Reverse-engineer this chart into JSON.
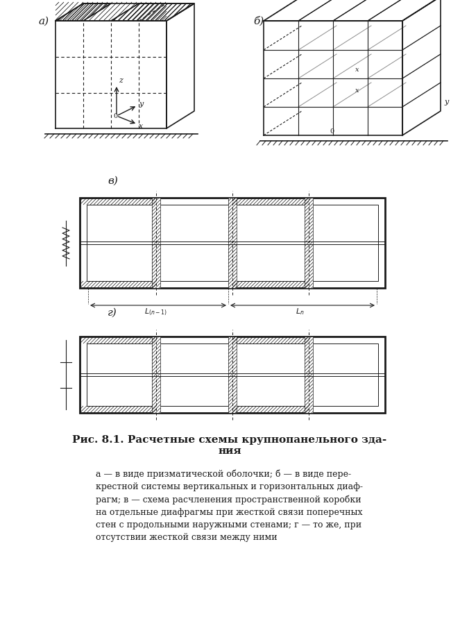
{
  "bg_color": "#f5f5f0",
  "line_color": "#1a1a1a",
  "hatch_color": "#1a1a1a",
  "title": "Рис. 8.1. Расчетные схемы крупнопанельного зда-\nния",
  "caption": "а — в виде призматической оболочки; б — в виде пере-\nкрестной системы вертикальных и горизонтальных диаф-\nрагм; в — схема расчленения пространственной коробки\nна отдельные диафрагмы при жесткой связи поперечных\nстен с продольными наружными стенами; г — то же, при\nотсутствии жесткой связи между ними",
  "label_a": "а)",
  "label_b": "б)",
  "label_v": "в)",
  "label_g": "г)"
}
